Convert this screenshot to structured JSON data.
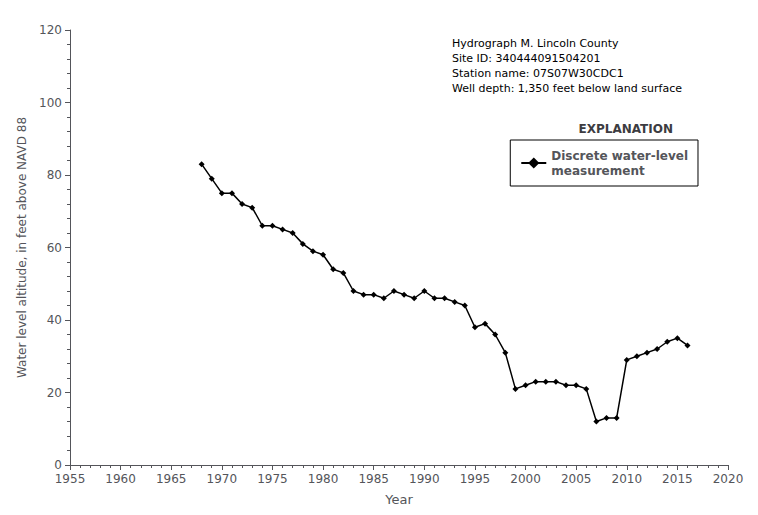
{
  "chart_data": {
    "type": "line",
    "xlabel": "Year",
    "ylabel": "Water level altitude, in feet above NAVD 88",
    "annotations": [
      "Hydrograph M. Lincoln County",
      "Site ID: 340444091504201",
      "Station name: 07S07W30CDC1",
      "Well depth: 1,350 feet below land surface"
    ],
    "legend_title": "EXPLANATION",
    "legend": "upper right",
    "grid": false,
    "x": [
      1968,
      1969,
      1970,
      1971,
      1972,
      1973,
      1974,
      1975,
      1976,
      1977,
      1978,
      1979,
      1980,
      1981,
      1982,
      1983,
      1984,
      1985,
      1986,
      1987,
      1988,
      1989,
      1990,
      1991,
      1992,
      1993,
      1994,
      1995,
      1996,
      1997,
      1998,
      1999,
      2000,
      2001,
      2002,
      2003,
      2004,
      2005,
      2006,
      2007,
      2008,
      2009,
      2010,
      2011,
      2012,
      2013,
      2014,
      2015,
      2016
    ],
    "series": [
      {
        "name": "Discrete water-level\nmeasurement",
        "color": "#000000",
        "marker": "diamond",
        "values": [
          83,
          79,
          75,
          75,
          72,
          71,
          66,
          66,
          65,
          64,
          61,
          59,
          58,
          54,
          53,
          48,
          47,
          47,
          46,
          48,
          47,
          46,
          48,
          46,
          46,
          45,
          44,
          38,
          39,
          36,
          31,
          21,
          22,
          23,
          23,
          23,
          22,
          22,
          21,
          12,
          13,
          13,
          29,
          30,
          31,
          32,
          34,
          35,
          33
        ]
      }
    ],
    "xlim": [
      1955,
      2020
    ],
    "xticks": [
      1955,
      1960,
      1965,
      1970,
      1975,
      1980,
      1985,
      1990,
      1995,
      2000,
      2005,
      2010,
      2015,
      2020
    ],
    "ylim": [
      0,
      120
    ],
    "yticks": [
      0,
      20,
      40,
      60,
      80,
      100,
      120
    ]
  }
}
